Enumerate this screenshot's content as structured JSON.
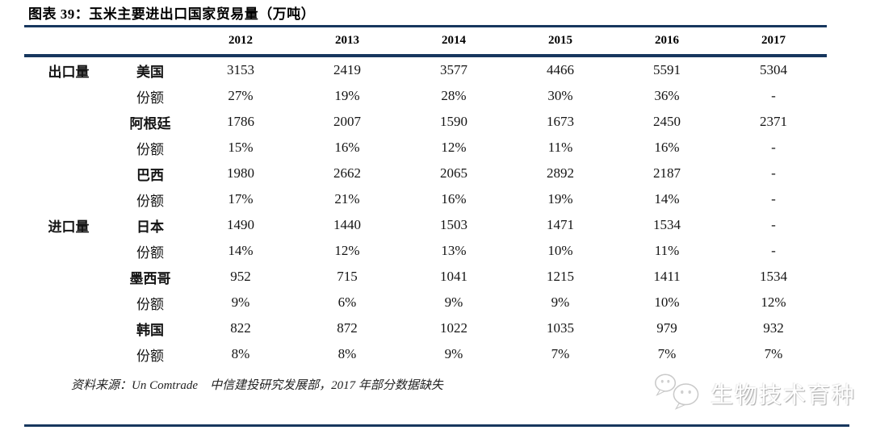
{
  "title": "图表 39：玉米主要进出口国家贸易量（万吨）",
  "table": {
    "year_headers": [
      "2012",
      "2013",
      "2014",
      "2015",
      "2016",
      "2017"
    ],
    "rows": [
      {
        "group": "出口量",
        "label": "美国",
        "type": "country",
        "values": [
          "3153",
          "2419",
          "3577",
          "4466",
          "5591",
          "5304"
        ]
      },
      {
        "group": "",
        "label": "份额",
        "type": "share",
        "values": [
          "27%",
          "19%",
          "28%",
          "30%",
          "36%",
          "-"
        ]
      },
      {
        "group": "",
        "label": "阿根廷",
        "type": "country",
        "values": [
          "1786",
          "2007",
          "1590",
          "1673",
          "2450",
          "2371"
        ]
      },
      {
        "group": "",
        "label": "份额",
        "type": "share",
        "values": [
          "15%",
          "16%",
          "12%",
          "11%",
          "16%",
          "-"
        ]
      },
      {
        "group": "",
        "label": "巴西",
        "type": "country",
        "values": [
          "1980",
          "2662",
          "2065",
          "2892",
          "2187",
          "-"
        ]
      },
      {
        "group": "",
        "label": "份额",
        "type": "share",
        "values": [
          "17%",
          "21%",
          "16%",
          "19%",
          "14%",
          "-"
        ]
      },
      {
        "group": "进口量",
        "label": "日本",
        "type": "country",
        "values": [
          "1490",
          "1440",
          "1503",
          "1471",
          "1534",
          "-"
        ]
      },
      {
        "group": "",
        "label": "份额",
        "type": "share",
        "values": [
          "14%",
          "12%",
          "13%",
          "10%",
          "11%",
          "-"
        ]
      },
      {
        "group": "",
        "label": "墨西哥",
        "type": "country",
        "values": [
          "952",
          "715",
          "1041",
          "1215",
          "1411",
          "1534"
        ]
      },
      {
        "group": "",
        "label": "份额",
        "type": "share",
        "values": [
          "9%",
          "6%",
          "9%",
          "9%",
          "10%",
          "12%"
        ]
      },
      {
        "group": "",
        "label": "韩国",
        "type": "country",
        "values": [
          "822",
          "872",
          "1022",
          "1035",
          "979",
          "932"
        ]
      },
      {
        "group": "",
        "label": "份额",
        "type": "share",
        "values": [
          "8%",
          "8%",
          "9%",
          "7%",
          "7%",
          "7%"
        ]
      }
    ]
  },
  "source_note": "资料来源：Un Comtrade　中信建投研究发展部，2017 年部分数据缺失",
  "watermark": {
    "icon": "wechat-icon",
    "text": "生物技术育种"
  },
  "colors": {
    "rule_navy": "#17375E",
    "share_text": "#4a4a4a"
  },
  "chart_data": {
    "type": "table",
    "title": "图表 39：玉米主要进出口国家贸易量（万吨）",
    "unit": "万吨",
    "columns": [
      "2012",
      "2013",
      "2014",
      "2015",
      "2016",
      "2017"
    ],
    "groups": [
      {
        "group": "出口量",
        "countries": [
          {
            "name": "美国",
            "volumes": [
              3153,
              2419,
              3577,
              4466,
              5591,
              5304
            ],
            "shares": [
              "27%",
              "19%",
              "28%",
              "30%",
              "36%",
              "-"
            ]
          },
          {
            "name": "阿根廷",
            "volumes": [
              1786,
              2007,
              1590,
              1673,
              2450,
              2371
            ],
            "shares": [
              "15%",
              "16%",
              "12%",
              "11%",
              "16%",
              "-"
            ]
          },
          {
            "name": "巴西",
            "volumes": [
              1980,
              2662,
              2065,
              2892,
              2187,
              null
            ],
            "shares": [
              "17%",
              "21%",
              "16%",
              "19%",
              "14%",
              "-"
            ]
          }
        ]
      },
      {
        "group": "进口量",
        "countries": [
          {
            "name": "日本",
            "volumes": [
              1490,
              1440,
              1503,
              1471,
              1534,
              null
            ],
            "shares": [
              "14%",
              "12%",
              "13%",
              "10%",
              "11%",
              "-"
            ]
          },
          {
            "name": "墨西哥",
            "volumes": [
              952,
              715,
              1041,
              1215,
              1411,
              1534
            ],
            "shares": [
              "9%",
              "6%",
              "9%",
              "9%",
              "10%",
              "12%"
            ]
          },
          {
            "name": "韩国",
            "volumes": [
              822,
              872,
              1022,
              1035,
              979,
              932
            ],
            "shares": [
              "8%",
              "8%",
              "9%",
              "7%",
              "7%",
              "7%"
            ]
          }
        ]
      }
    ],
    "source": "资料来源：Un Comtrade 中信建投研究发展部，2017 年部分数据缺失",
    "layout": {
      "grid": "horizontal rules only",
      "header_rule_color": "#17375E"
    }
  }
}
